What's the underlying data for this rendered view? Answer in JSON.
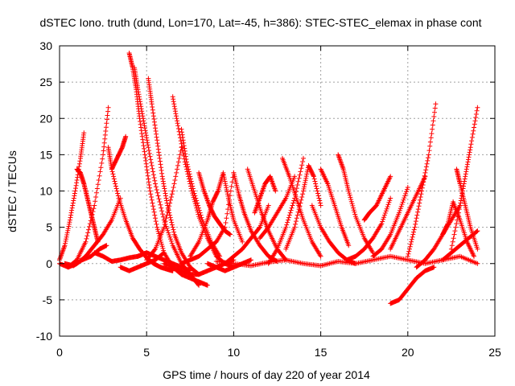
{
  "chart_data": {
    "type": "scatter",
    "title": "dSTEC Iono. truth (dund, Lon=170, Lat=-45, h=386): STEC-STEC_elemax in phase cont",
    "xlabel": "GPS time / hours of day 220 of year 2014",
    "ylabel": "dSTEC  / TECUs",
    "xlim": [
      0,
      25
    ],
    "ylim": [
      -10,
      30
    ],
    "xticks": [
      0,
      5,
      10,
      15,
      20,
      25
    ],
    "yticks": [
      -10,
      -5,
      0,
      5,
      10,
      15,
      20,
      25,
      30
    ],
    "grid": true,
    "legend": "none",
    "marker": "+",
    "color": "#ff0000",
    "series": [
      {
        "x": [
          0.0,
          0.3,
          0.6,
          0.9,
          1.2,
          1.4
        ],
        "y": [
          0.5,
          2.5,
          6.0,
          10.0,
          14.5,
          18.0
        ]
      },
      {
        "x": [
          0.0,
          0.5,
          1.0,
          1.5,
          2.0,
          2.5,
          2.8
        ],
        "y": [
          0.0,
          -0.5,
          0.5,
          3.0,
          8.0,
          15.0,
          21.5
        ]
      },
      {
        "x": [
          1.0,
          1.2,
          1.4,
          1.6,
          1.8,
          2.0,
          2.2
        ],
        "y": [
          13.0,
          12.5,
          11.0,
          9.0,
          7.0,
          5.0,
          3.0
        ]
      },
      {
        "x": [
          0.3,
          0.8,
          1.3,
          1.8,
          2.3,
          2.7
        ],
        "y": [
          0.0,
          -0.3,
          0.5,
          1.0,
          2.0,
          2.5
        ]
      },
      {
        "x": [
          0.5,
          1.0,
          1.5,
          2.0,
          2.5,
          3.0,
          3.5
        ],
        "y": [
          -0.5,
          0.0,
          1.0,
          2.5,
          4.0,
          6.0,
          9.0
        ]
      },
      {
        "x": [
          2.8,
          3.0,
          3.4,
          3.8,
          4.2,
          4.6,
          5.0,
          5.4,
          5.8,
          6.2,
          6.5
        ],
        "y": [
          16.0,
          13.0,
          9.0,
          6.0,
          3.5,
          2.0,
          0.8,
          0.0,
          -0.5,
          -0.8,
          -1.0
        ]
      },
      {
        "x": [
          3.0,
          3.3,
          3.6,
          3.8
        ],
        "y": [
          13.0,
          14.5,
          16.0,
          17.5
        ]
      },
      {
        "x": [
          2.0,
          2.5,
          3.0,
          3.5,
          4.0,
          4.5,
          5.0
        ],
        "y": [
          1.5,
          1.0,
          0.3,
          0.5,
          0.8,
          1.0,
          1.5
        ]
      },
      {
        "x": [
          4.0,
          4.2,
          4.4,
          4.6,
          4.9,
          5.2,
          5.6,
          6.0,
          6.5,
          7.0,
          7.5,
          8.0,
          8.5
        ],
        "y": [
          29.0,
          27.0,
          24.0,
          20.0,
          15.0,
          10.0,
          5.0,
          1.5,
          -0.5,
          -1.5,
          -2.0,
          -2.5,
          -3.0
        ]
      },
      {
        "x": [
          4.3,
          4.5,
          4.8,
          5.1,
          5.5,
          6.0,
          6.5,
          7.0,
          7.5,
          8.0
        ],
        "y": [
          27.0,
          24.0,
          20.0,
          16.0,
          11.0,
          6.0,
          2.5,
          0.0,
          -1.5,
          -3.0
        ]
      },
      {
        "x": [
          5.1,
          5.3,
          5.6,
          5.9,
          6.2,
          6.6,
          7.0,
          7.5,
          8.0
        ],
        "y": [
          25.5,
          22.0,
          17.0,
          12.0,
          8.0,
          4.0,
          1.5,
          -0.5,
          -1.5
        ]
      },
      {
        "x": [
          3.5,
          4.0,
          4.5,
          5.0,
          5.5,
          6.0
        ],
        "y": [
          -0.5,
          -1.0,
          -0.5,
          0.0,
          0.5,
          1.5
        ]
      },
      {
        "x": [
          4.5,
          5.0,
          5.5,
          6.0,
          6.5,
          7.0,
          7.5
        ],
        "y": [
          1.0,
          1.5,
          1.0,
          0.5,
          0.0,
          -0.5,
          -1.0
        ]
      },
      {
        "x": [
          6.5,
          6.8,
          7.2,
          7.6,
          8.0,
          8.5,
          9.0,
          9.5,
          10.0
        ],
        "y": [
          23.0,
          19.0,
          14.0,
          10.0,
          6.5,
          3.5,
          1.0,
          0.0,
          -0.5
        ]
      },
      {
        "x": [
          7.0,
          7.3,
          7.7,
          8.2,
          8.7,
          9.2
        ],
        "y": [
          18.5,
          14.0,
          10.0,
          6.0,
          3.0,
          1.0
        ]
      },
      {
        "x": [
          5.0,
          5.5,
          6.0,
          6.5,
          7.0
        ],
        "y": [
          0.5,
          2.0,
          5.0,
          10.0,
          16.0
        ]
      },
      {
        "x": [
          6.0,
          6.5,
          7.0,
          7.5,
          8.0,
          8.5,
          9.0,
          9.5,
          10.0
        ],
        "y": [
          0.0,
          -0.5,
          -1.0,
          -1.5,
          -1.5,
          -1.0,
          -0.5,
          0.0,
          0.5
        ]
      },
      {
        "x": [
          7.5,
          8.0,
          8.5,
          8.8,
          9.1,
          9.4,
          9.7,
          10.0,
          10.5
        ],
        "y": [
          1.0,
          3.0,
          6.0,
          8.5,
          10.0,
          12.5,
          9.0,
          6.0,
          3.0
        ]
      },
      {
        "x": [
          8.0,
          8.3,
          8.6,
          8.9,
          9.2,
          9.5,
          9.8
        ],
        "y": [
          12.5,
          10.0,
          8.0,
          6.5,
          5.5,
          4.5,
          4.0
        ]
      },
      {
        "x": [
          7.0,
          7.5,
          8.0,
          8.5,
          9.0,
          9.5,
          10.0
        ],
        "y": [
          0.0,
          0.5,
          1.0,
          2.0,
          3.0,
          5.0,
          12.5
        ]
      },
      {
        "x": [
          8.5,
          9.0,
          9.5,
          10.0,
          10.5,
          11.0
        ],
        "y": [
          0.0,
          -0.5,
          -1.0,
          -0.5,
          0.0,
          0.5
        ]
      },
      {
        "x": [
          9.5,
          10.0,
          10.5,
          11.0,
          11.5,
          12.0
        ],
        "y": [
          0.0,
          1.0,
          2.0,
          3.5,
          5.0,
          8.0
        ]
      },
      {
        "x": [
          10.0,
          10.3,
          10.6,
          11.0,
          11.5,
          12.0,
          12.5
        ],
        "y": [
          12.5,
          9.5,
          7.0,
          4.5,
          2.5,
          1.0,
          0.3
        ]
      },
      {
        "x": [
          10.8,
          11.2,
          11.6,
          12.0,
          12.5,
          13.0
        ],
        "y": [
          13.0,
          10.0,
          7.0,
          4.5,
          2.0,
          0.5
        ]
      },
      {
        "x": [
          11.2,
          11.5,
          11.8,
          12.1,
          12.4
        ],
        "y": [
          7.0,
          9.0,
          11.0,
          12.0,
          10.0
        ]
      },
      {
        "x": [
          11.5,
          12.0,
          12.5,
          13.0,
          13.5
        ],
        "y": [
          3.5,
          5.0,
          7.0,
          9.0,
          12.0
        ]
      },
      {
        "x": [
          12.0,
          12.5,
          13.0,
          13.5,
          14.0
        ],
        "y": [
          0.0,
          2.0,
          5.0,
          9.0,
          14.5
        ]
      },
      {
        "x": [
          12.8,
          13.2,
          13.6,
          14.0,
          14.5,
          15.0
        ],
        "y": [
          14.5,
          12.0,
          9.0,
          6.0,
          3.0,
          1.0
        ]
      },
      {
        "x": [
          13.0,
          13.5,
          14.0,
          14.3,
          14.6,
          15.0
        ],
        "y": [
          2.0,
          5.0,
          10.0,
          13.5,
          12.0,
          8.0
        ]
      },
      {
        "x": [
          14.5,
          15.0,
          15.5,
          16.0,
          16.5,
          17.0
        ],
        "y": [
          8.0,
          5.0,
          3.0,
          1.5,
          0.5,
          0.0
        ]
      },
      {
        "x": [
          15.0,
          15.4,
          15.8,
          16.2,
          16.6
        ],
        "y": [
          13.0,
          11.0,
          8.0,
          5.0,
          2.5
        ]
      },
      {
        "x": [
          16.0,
          16.3,
          16.6,
          17.0,
          17.5,
          18.0
        ],
        "y": [
          15.0,
          13.0,
          10.0,
          6.5,
          3.5,
          1.5
        ]
      },
      {
        "x": [
          17.5,
          17.8,
          18.2,
          18.6,
          19.0
        ],
        "y": [
          6.0,
          7.0,
          8.0,
          10.0,
          12.0
        ]
      },
      {
        "x": [
          16.5,
          17.0,
          17.5,
          18.0,
          18.5,
          19.0
        ],
        "y": [
          0.5,
          1.0,
          2.0,
          3.5,
          5.5,
          9.0
        ]
      },
      {
        "x": [
          18.0,
          18.5,
          19.0,
          19.5,
          20.0
        ],
        "y": [
          1.0,
          2.0,
          4.0,
          7.0,
          10.5
        ]
      },
      {
        "x": [
          19.0,
          19.5,
          20.0,
          20.5,
          21.0,
          21.5
        ],
        "y": [
          -5.5,
          -5.0,
          -3.5,
          -2.0,
          -1.0,
          -0.5
        ]
      },
      {
        "x": [
          19.0,
          19.5,
          20.0,
          20.5,
          21.0
        ],
        "y": [
          2.0,
          4.5,
          7.0,
          9.5,
          12.0
        ]
      },
      {
        "x": [
          20.0,
          20.4,
          20.8,
          21.2,
          21.6
        ],
        "y": [
          1.0,
          5.0,
          10.0,
          15.0,
          22.0
        ]
      },
      {
        "x": [
          20.5,
          21.0,
          21.5,
          22.0,
          22.5,
          23.0
        ],
        "y": [
          -0.5,
          0.5,
          2.0,
          4.0,
          6.0,
          8.0
        ]
      },
      {
        "x": [
          22.0,
          22.3,
          22.6,
          23.0,
          23.4,
          23.8
        ],
        "y": [
          4.0,
          5.5,
          8.5,
          6.0,
          3.0,
          1.0
        ]
      },
      {
        "x": [
          22.8,
          23.0,
          23.3,
          23.6,
          24.0
        ],
        "y": [
          13.0,
          11.0,
          8.0,
          5.0,
          2.0
        ]
      },
      {
        "x": [
          22.5,
          23.0,
          23.3,
          23.6,
          24.0
        ],
        "y": [
          2.0,
          8.0,
          12.0,
          16.0,
          21.5
        ]
      },
      {
        "x": [
          22.0,
          22.5,
          23.0,
          23.5,
          24.0
        ],
        "y": [
          0.5,
          1.5,
          2.5,
          3.5,
          4.5
        ]
      },
      {
        "x": [
          9.0,
          10.0,
          11.0,
          12.0,
          13.0,
          14.0,
          15.0,
          16.0,
          17.0,
          18.0,
          19.0,
          20.0,
          21.0,
          22.0,
          23.0,
          24.0
        ],
        "y": [
          0.3,
          0.0,
          -0.3,
          0.2,
          0.5,
          0.0,
          -0.3,
          0.3,
          0.0,
          0.5,
          1.0,
          0.5,
          0.0,
          0.5,
          1.0,
          0.0
        ]
      }
    ]
  }
}
